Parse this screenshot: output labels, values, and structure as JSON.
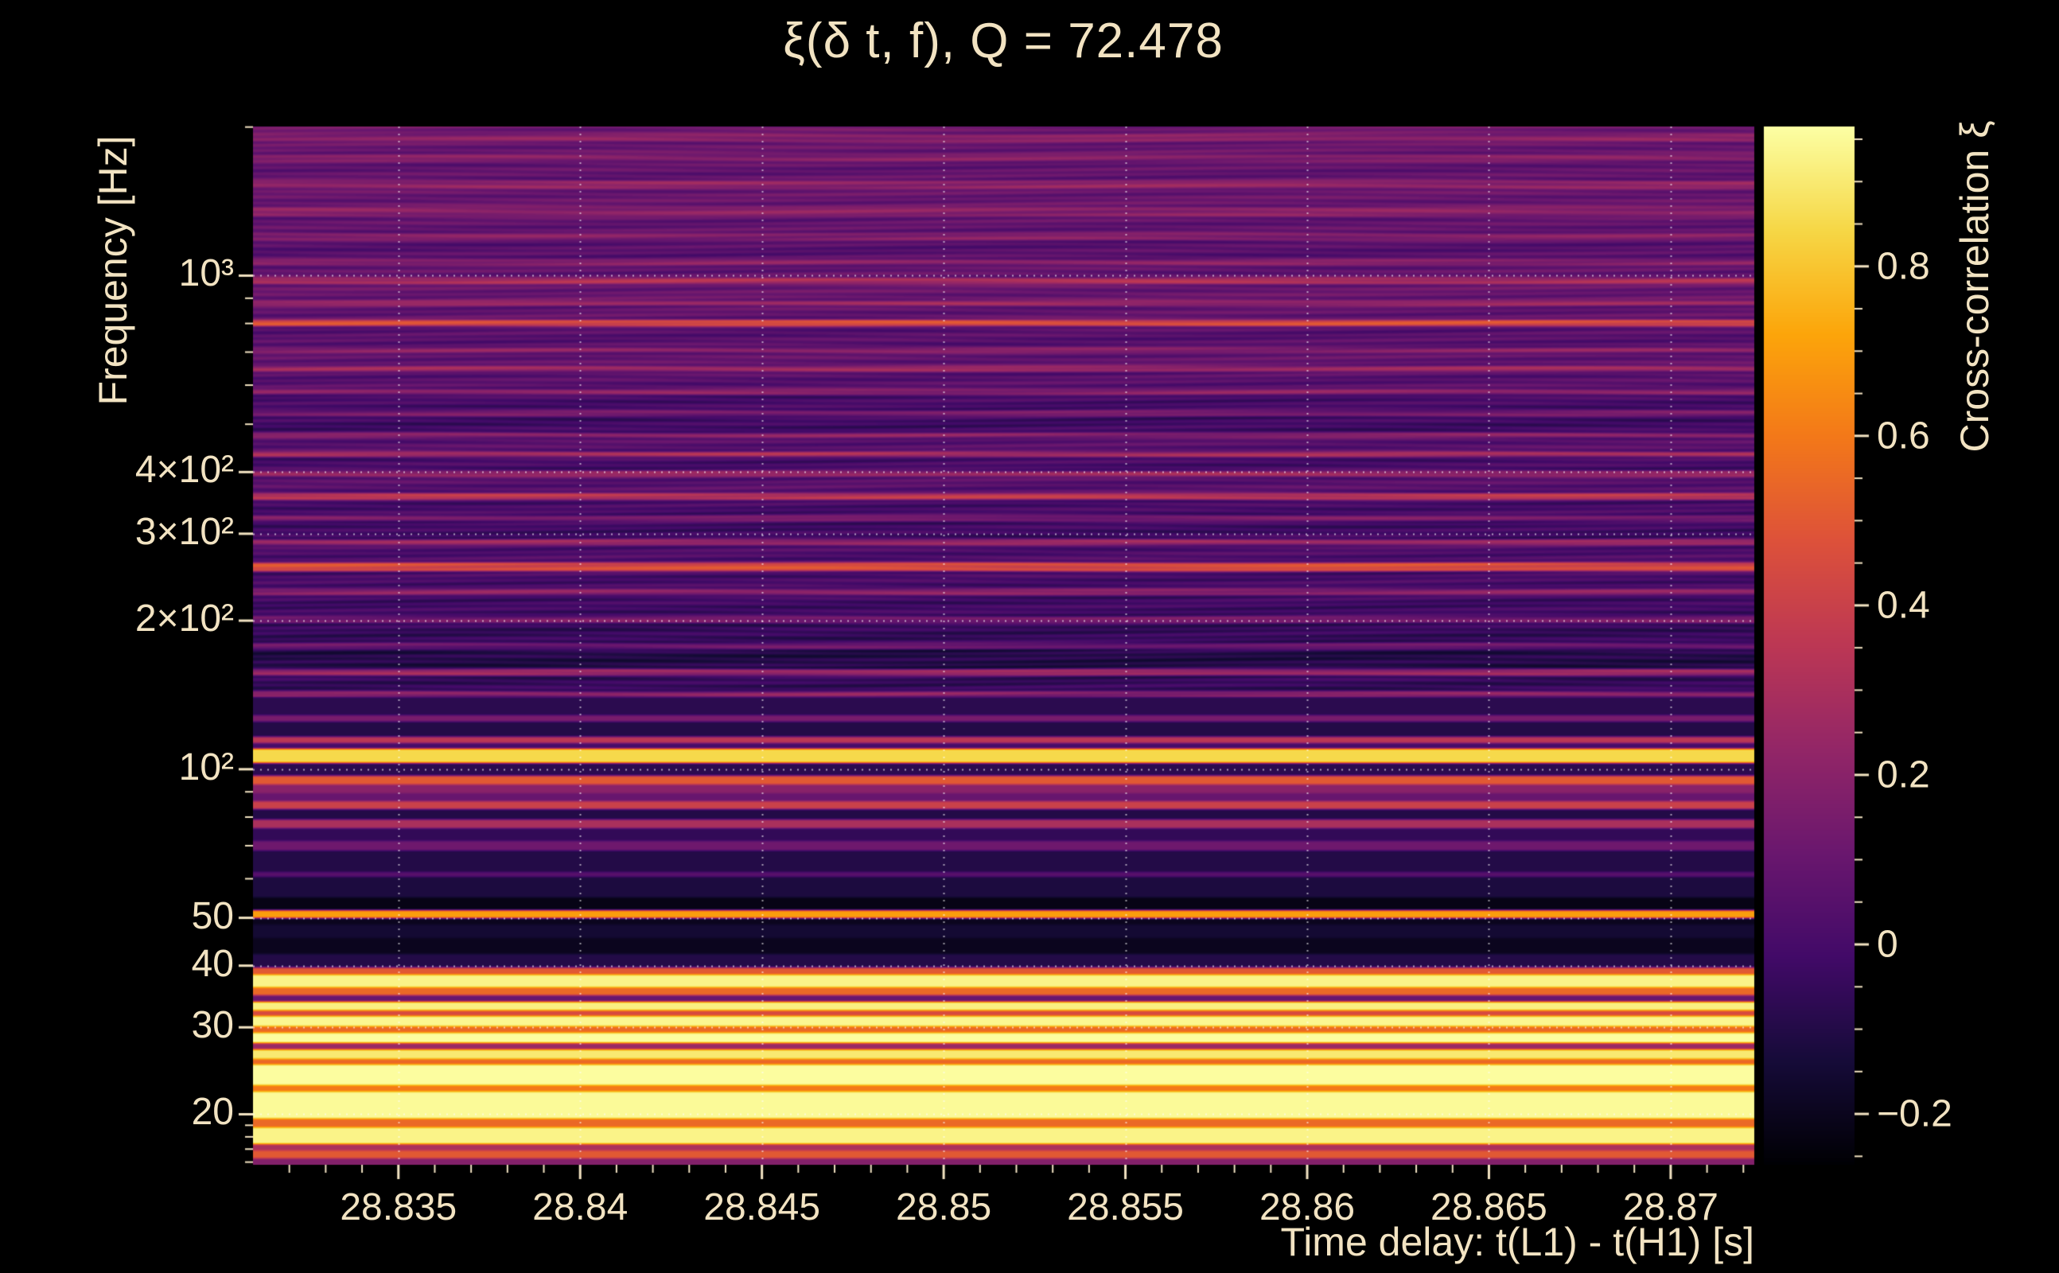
{
  "colors": {
    "background": "#000000",
    "text": "#f2e3c2",
    "gridline": "rgba(255,255,255,0.6)"
  },
  "chart_data": {
    "type": "heatmap",
    "title": "ξ(δ t, f), Q = 72.478",
    "xlabel": "Time delay: t(L1) - t(H1) [s]",
    "ylabel": "Frequency [Hz]",
    "colorbar_label": "Cross-correlation ξ",
    "x_range": [
      28.831,
      28.8723
    ],
    "y_range": [
      15.8,
      2005
    ],
    "y_scale": "log",
    "color_range": [
      -0.26,
      0.965
    ],
    "grid": true,
    "x_ticks": [
      {
        "value": 28.835,
        "label": "28.835"
      },
      {
        "value": 28.84,
        "label": "28.84"
      },
      {
        "value": 28.845,
        "label": "28.845"
      },
      {
        "value": 28.85,
        "label": "28.85"
      },
      {
        "value": 28.855,
        "label": "28.855"
      },
      {
        "value": 28.86,
        "label": "28.86"
      },
      {
        "value": 28.865,
        "label": "28.865"
      },
      {
        "value": 28.87,
        "label": "28.87"
      }
    ],
    "x_minor_step": 0.001,
    "y_ticks": [
      {
        "value": 1000,
        "label": "10³"
      },
      {
        "value": 400,
        "label": "4×10²"
      },
      {
        "value": 300,
        "label": "3×10²"
      },
      {
        "value": 200,
        "label": "2×10²"
      },
      {
        "value": 100,
        "label": "10²"
      },
      {
        "value": 50,
        "label": "50"
      },
      {
        "value": 40,
        "label": "40"
      },
      {
        "value": 30,
        "label": "30"
      },
      {
        "value": 20,
        "label": "20"
      }
    ],
    "y_minor_ticks": [
      16,
      17,
      18,
      19,
      60,
      70,
      80,
      90,
      500,
      600,
      700,
      800,
      900,
      2000
    ],
    "colorbar_ticks": [
      {
        "value": 0.8,
        "label": "0.8"
      },
      {
        "value": 0.6,
        "label": "0.6"
      },
      {
        "value": 0.4,
        "label": "0.4"
      },
      {
        "value": 0.2,
        "label": "0.2"
      },
      {
        "value": 0,
        "label": "0"
      },
      {
        "value": -0.2,
        "label": "−0.2"
      }
    ],
    "colorbar_minor_step": 0.05,
    "colormap": {
      "name": "inferno",
      "stops": [
        [
          0.0,
          "#000004"
        ],
        [
          0.1,
          "#160b39"
        ],
        [
          0.2,
          "#420a68"
        ],
        [
          0.3,
          "#6a176e"
        ],
        [
          0.4,
          "#932667"
        ],
        [
          0.5,
          "#bc3754"
        ],
        [
          0.6,
          "#dd513a"
        ],
        [
          0.7,
          "#f37819"
        ],
        [
          0.8,
          "#fca50a"
        ],
        [
          0.9,
          "#f6d746"
        ],
        [
          1.0,
          "#fcffa4"
        ]
      ]
    },
    "texture": {
      "f_min": 140,
      "amp1": 0.035,
      "amp2": 0.028
    },
    "bands": [
      [
        15.8,
        16.3,
        0.18
      ],
      [
        16.3,
        16.9,
        0.5
      ],
      [
        16.9,
        17.4,
        0.3
      ],
      [
        17.4,
        18.8,
        0.93
      ],
      [
        18.8,
        19.6,
        0.55
      ],
      [
        19.6,
        22.2,
        0.95
      ],
      [
        22.2,
        22.9,
        0.6
      ],
      [
        22.9,
        25.2,
        0.96
      ],
      [
        25.2,
        25.9,
        0.55
      ],
      [
        25.9,
        27.1,
        0.9
      ],
      [
        27.1,
        27.9,
        0.25
      ],
      [
        27.9,
        29.3,
        0.96
      ],
      [
        29.3,
        30.1,
        0.55
      ],
      [
        30.1,
        31.6,
        0.94
      ],
      [
        31.6,
        32.5,
        0.45
      ],
      [
        32.5,
        33.8,
        0.92
      ],
      [
        33.8,
        34.8,
        0.1
      ],
      [
        34.8,
        36.2,
        0.55
      ],
      [
        36.2,
        38.3,
        0.93
      ],
      [
        38.3,
        39.6,
        0.5
      ],
      [
        39.6,
        42.3,
        -0.1
      ],
      [
        42.3,
        45.5,
        -0.2
      ],
      [
        45.5,
        48.5,
        -0.15
      ],
      [
        48.5,
        50.0,
        -0.2
      ],
      [
        50.0,
        51.8,
        0.7
      ],
      [
        51.8,
        55.0,
        -0.22
      ],
      [
        55.0,
        60.5,
        -0.12
      ],
      [
        60.5,
        62.0,
        0.05
      ],
      [
        62.0,
        68.5,
        -0.1
      ],
      [
        68.5,
        71.5,
        0.12
      ],
      [
        71.5,
        76.0,
        -0.06
      ],
      [
        76.0,
        79.0,
        0.3
      ],
      [
        79.0,
        83.0,
        -0.1
      ],
      [
        83.0,
        86.0,
        0.4
      ],
      [
        86.0,
        89.5,
        0.1
      ],
      [
        89.5,
        93.0,
        0.2
      ],
      [
        93.0,
        97.0,
        0.5
      ],
      [
        97.0,
        103.0,
        -0.08
      ],
      [
        103.0,
        110.0,
        0.85
      ],
      [
        110.0,
        113.0,
        0.0
      ],
      [
        113.0,
        116.5,
        0.35
      ],
      [
        116.5,
        125.0,
        -0.1
      ],
      [
        125.0,
        128.5,
        0.15
      ],
      [
        128.5,
        140.0,
        -0.08
      ],
      [
        140.0,
        144.0,
        0.2
      ],
      [
        144.0,
        155.0,
        -0.05
      ],
      [
        155.0,
        159.5,
        0.25
      ],
      [
        159.5,
        175.0,
        -0.1
      ],
      [
        175.0,
        180.0,
        0.1
      ],
      [
        180.0,
        198.0,
        -0.05
      ],
      [
        198.0,
        204.0,
        0.15
      ],
      [
        204.0,
        225.0,
        -0.02
      ],
      [
        225.0,
        232.0,
        0.2
      ],
      [
        232.0,
        252.0,
        0.0
      ],
      [
        252.0,
        262.0,
        0.45
      ],
      [
        262.0,
        285.0,
        0.02
      ],
      [
        285.0,
        292.0,
        0.25
      ],
      [
        292.0,
        318.0,
        -0.02
      ],
      [
        318.0,
        326.0,
        0.15
      ],
      [
        326.0,
        352.0,
        0.0
      ],
      [
        352.0,
        362.0,
        0.35
      ],
      [
        362.0,
        392.0,
        0.05
      ],
      [
        392.0,
        402.0,
        0.25
      ],
      [
        402.0,
        430.0,
        0.0
      ],
      [
        430.0,
        440.0,
        0.3
      ],
      [
        440.0,
        470.0,
        0.05
      ],
      [
        470.0,
        480.0,
        0.2
      ],
      [
        480.0,
        520.0,
        -0.02
      ],
      [
        520.0,
        532.0,
        0.15
      ],
      [
        532.0,
        575.0,
        0.0
      ],
      [
        575.0,
        590.0,
        0.2
      ],
      [
        590.0,
        640.0,
        0.05
      ],
      [
        640.0,
        655.0,
        0.25
      ],
      [
        655.0,
        700.0,
        0.08
      ],
      [
        700.0,
        715.0,
        0.2
      ],
      [
        715.0,
        790.0,
        0.05
      ],
      [
        790.0,
        815.0,
        0.45
      ],
      [
        815.0,
        870.0,
        0.08
      ],
      [
        870.0,
        890.0,
        0.25
      ],
      [
        890.0,
        960.0,
        0.1
      ],
      [
        960.0,
        990.0,
        0.3
      ],
      [
        990.0,
        1050.0,
        0.08
      ],
      [
        1050.0,
        1080.0,
        0.2
      ],
      [
        1080.0,
        1180.0,
        0.05
      ],
      [
        1180.0,
        1220.0,
        0.18
      ],
      [
        1220.0,
        1320.0,
        0.08
      ],
      [
        1320.0,
        1380.0,
        0.2
      ],
      [
        1380.0,
        1500.0,
        0.1
      ],
      [
        1500.0,
        1560.0,
        0.22
      ],
      [
        1560.0,
        1700.0,
        0.08
      ],
      [
        1700.0,
        1760.0,
        0.18
      ],
      [
        1760.0,
        1870.0,
        0.1
      ],
      [
        1870.0,
        1930.0,
        0.2
      ],
      [
        1930.0,
        2005.0,
        0.12
      ]
    ]
  }
}
